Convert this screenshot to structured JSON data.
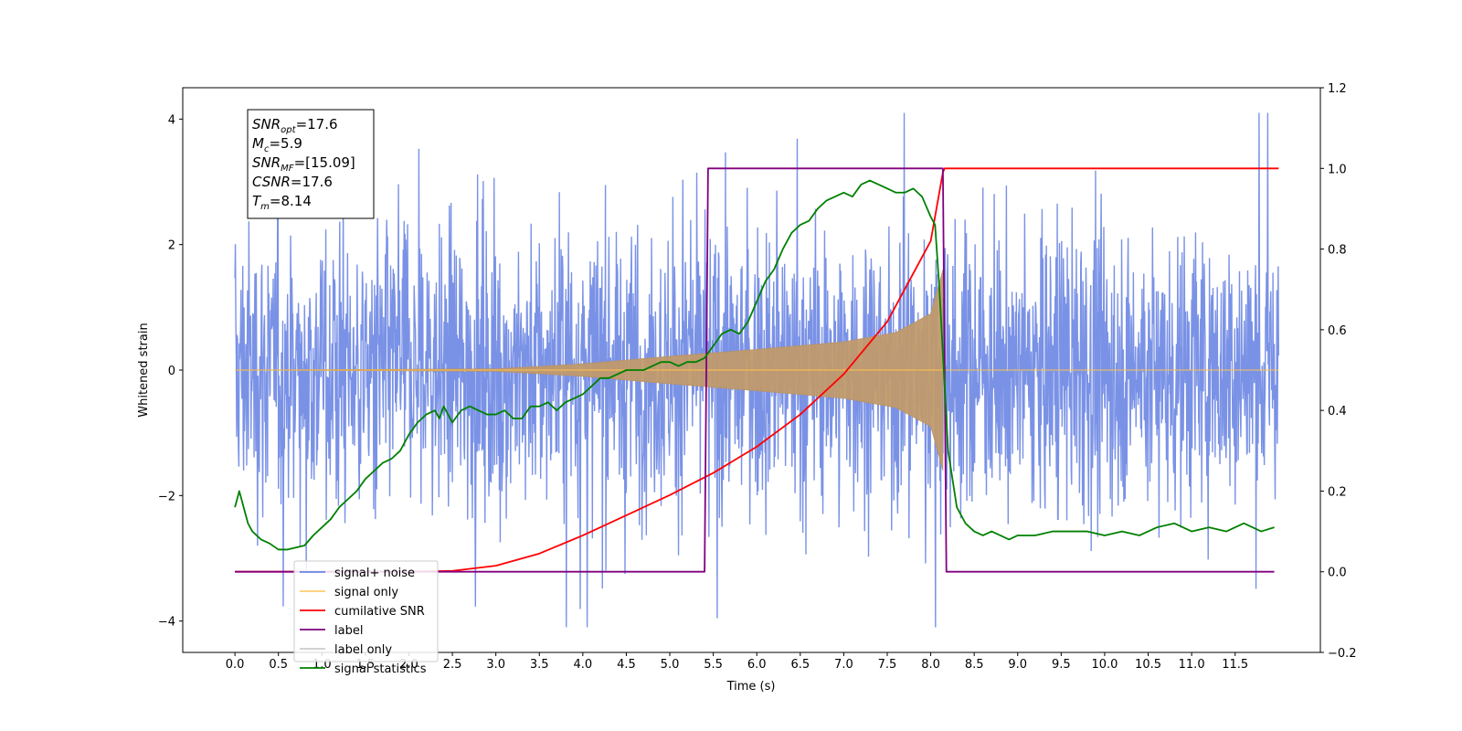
{
  "chart_data": {
    "type": "line",
    "title": "",
    "xlabel": "Time (s)",
    "ylabel_left": "Whitened strain",
    "ylabel_right": "",
    "xlim": [
      -0.6,
      12.48
    ],
    "ylim_left": [
      -4.5,
      4.5
    ],
    "ylim_right": [
      -0.2,
      1.2
    ],
    "x_ticks": [
      "0.0",
      "0.5",
      "1.0",
      "1.5",
      "2.0",
      "2.5",
      "3.0",
      "3.5",
      "4.0",
      "4.5",
      "5.0",
      "5.5",
      "6.0",
      "6.5",
      "7.0",
      "7.5",
      "8.0",
      "8.5",
      "9.0",
      "9.5",
      "10.0",
      "10.5",
      "11.0",
      "11.5"
    ],
    "y_ticks_left": [
      -4,
      -2,
      0,
      2,
      4
    ],
    "y_ticks_right": [
      "−0.2",
      "0.0",
      "0.2",
      "0.4",
      "0.6",
      "0.8",
      "1.0",
      "1.2"
    ],
    "grid": false,
    "legend_position": "lower-left",
    "annotation": {
      "lines": [
        {
          "sym": "SNR",
          "sub": "opt",
          "val": "=17.6"
        },
        {
          "sym": "M",
          "sub": "c",
          "val": "=5.9"
        },
        {
          "sym": "SNR",
          "sub": "MF",
          "val": "=[15.09]"
        },
        {
          "sym": "CSNR",
          "sub": "",
          "val": "=17.6"
        },
        {
          "sym": "T",
          "sub": "m",
          "val": "=8.14"
        }
      ]
    },
    "series": [
      {
        "name": "signal+ noise",
        "color": "#6b86e3",
        "axis": "left",
        "kind": "noise",
        "x_range": [
          0,
          12.0
        ],
        "approx_amplitude": 2.0
      },
      {
        "name": "signal only",
        "color": "#ffc04d",
        "axis": "left",
        "kind": "chirp",
        "x_range": [
          0,
          8.14
        ],
        "envelope": [
          [
            0,
            0.0
          ],
          [
            3.0,
            0.02
          ],
          [
            4.0,
            0.1
          ],
          [
            5.0,
            0.22
          ],
          [
            6.0,
            0.33
          ],
          [
            7.0,
            0.45
          ],
          [
            7.6,
            0.6
          ],
          [
            8.0,
            0.9
          ],
          [
            8.14,
            1.6
          ]
        ]
      },
      {
        "name": "cumilative SNR",
        "color": "#ff0000",
        "axis": "right",
        "x": [
          0.0,
          2.0,
          2.5,
          3.0,
          3.5,
          4.0,
          4.5,
          5.0,
          5.5,
          6.0,
          6.5,
          7.0,
          7.5,
          8.0,
          8.14,
          8.16,
          12.0
        ],
        "values": [
          0.0,
          0.0,
          0.002,
          0.015,
          0.045,
          0.09,
          0.14,
          0.19,
          0.245,
          0.31,
          0.39,
          0.49,
          0.62,
          0.82,
          0.99,
          1.0,
          1.0
        ]
      },
      {
        "name": "label",
        "color": "#800080",
        "axis": "right",
        "x": [
          0.0,
          5.4,
          5.44,
          8.14,
          8.18,
          11.95
        ],
        "values": [
          0.0,
          0.0,
          1.0,
          1.0,
          0.0,
          0.0
        ]
      },
      {
        "name": "label only",
        "color": "#cccccc",
        "axis": "right",
        "x": [],
        "values": []
      },
      {
        "name": "signal statistics",
        "color": "#008000",
        "axis": "right",
        "x": [
          0.0,
          0.05,
          0.1,
          0.15,
          0.2,
          0.3,
          0.4,
          0.5,
          0.6,
          0.7,
          0.8,
          0.9,
          1.0,
          1.1,
          1.2,
          1.3,
          1.4,
          1.5,
          1.6,
          1.7,
          1.8,
          1.9,
          2.0,
          2.1,
          2.2,
          2.3,
          2.35,
          2.4,
          2.5,
          2.6,
          2.7,
          2.8,
          2.9,
          3.0,
          3.1,
          3.2,
          3.3,
          3.4,
          3.5,
          3.6,
          3.7,
          3.8,
          3.9,
          4.0,
          4.1,
          4.2,
          4.3,
          4.4,
          4.5,
          4.6,
          4.7,
          4.8,
          4.9,
          5.0,
          5.1,
          5.2,
          5.3,
          5.4,
          5.5,
          5.6,
          5.7,
          5.8,
          5.9,
          6.0,
          6.1,
          6.2,
          6.3,
          6.4,
          6.5,
          6.6,
          6.7,
          6.8,
          6.9,
          7.0,
          7.1,
          7.2,
          7.3,
          7.4,
          7.5,
          7.6,
          7.7,
          7.8,
          7.9,
          8.0,
          8.05,
          8.1,
          8.15,
          8.2,
          8.3,
          8.4,
          8.5,
          8.6,
          8.7,
          8.8,
          8.9,
          9.0,
          9.2,
          9.4,
          9.6,
          9.8,
          10.0,
          10.2,
          10.4,
          10.6,
          10.8,
          11.0,
          11.2,
          11.4,
          11.6,
          11.8,
          11.95
        ],
        "values": [
          0.16,
          0.2,
          0.16,
          0.12,
          0.1,
          0.08,
          0.07,
          0.055,
          0.055,
          0.06,
          0.065,
          0.09,
          0.11,
          0.13,
          0.16,
          0.18,
          0.2,
          0.23,
          0.25,
          0.27,
          0.28,
          0.3,
          0.34,
          0.37,
          0.39,
          0.4,
          0.38,
          0.41,
          0.37,
          0.4,
          0.41,
          0.4,
          0.39,
          0.39,
          0.4,
          0.38,
          0.38,
          0.41,
          0.41,
          0.42,
          0.4,
          0.42,
          0.43,
          0.44,
          0.46,
          0.48,
          0.48,
          0.49,
          0.5,
          0.5,
          0.5,
          0.51,
          0.52,
          0.52,
          0.51,
          0.52,
          0.52,
          0.53,
          0.56,
          0.59,
          0.6,
          0.59,
          0.62,
          0.67,
          0.72,
          0.75,
          0.8,
          0.84,
          0.86,
          0.87,
          0.9,
          0.92,
          0.93,
          0.94,
          0.93,
          0.96,
          0.97,
          0.96,
          0.95,
          0.94,
          0.94,
          0.95,
          0.93,
          0.88,
          0.86,
          0.7,
          0.5,
          0.3,
          0.16,
          0.12,
          0.1,
          0.09,
          0.1,
          0.09,
          0.08,
          0.09,
          0.09,
          0.1,
          0.1,
          0.1,
          0.09,
          0.1,
          0.09,
          0.11,
          0.12,
          0.1,
          0.11,
          0.1,
          0.12,
          0.1,
          0.11
        ]
      }
    ]
  }
}
